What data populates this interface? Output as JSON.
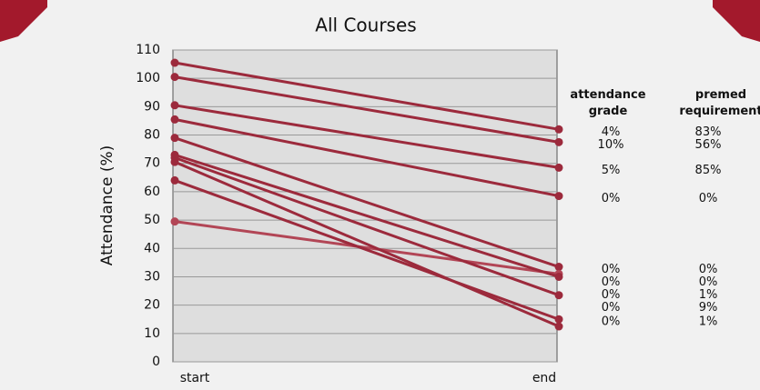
{
  "chart_data": {
    "type": "slope",
    "title": "All Courses",
    "y_label": "Attendance (%)",
    "categories": [
      "start",
      "end"
    ],
    "ylim": [
      0,
      110
    ],
    "yticks": [
      0,
      10,
      20,
      30,
      40,
      50,
      60,
      70,
      80,
      90,
      100,
      110
    ],
    "grid": true,
    "columns": [
      "attendance grade",
      "premed requirement"
    ],
    "series": [
      {
        "color": "#9c2a3c",
        "values": [
          105.5,
          82
        ],
        "labels": [
          "4%",
          "83%"
        ]
      },
      {
        "color": "#9c2a3c",
        "values": [
          100.5,
          77.5
        ],
        "labels": [
          "10%",
          "56%"
        ]
      },
      {
        "color": "#9c2a3c",
        "values": [
          90.5,
          68.5
        ],
        "labels": [
          "5%",
          "85%"
        ]
      },
      {
        "color": "#9c2a3c",
        "values": [
          85.5,
          58.5
        ],
        "labels": [
          "0%",
          "0%"
        ]
      },
      {
        "color": "#9c2a3c",
        "values": [
          79,
          33.5
        ],
        "labels": [
          "0%",
          "0%"
        ]
      },
      {
        "color": "#b24656",
        "values": [
          49.5,
          31
        ],
        "labels": [
          "0%",
          "0%"
        ]
      },
      {
        "color": "#9c2a3c",
        "values": [
          73,
          30
        ],
        "labels": [
          "0%",
          "1%"
        ]
      },
      {
        "color": "#9c2a3c",
        "values": [
          72,
          23.5
        ],
        "labels": [
          "0%",
          "9%"
        ]
      },
      {
        "color": "#9c2a3c",
        "values": [
          64,
          15
        ],
        "labels": [
          "0%",
          "1%"
        ]
      },
      {
        "color": "#9c2a3c",
        "values": [
          70.5,
          12.5
        ],
        "labels": []
      }
    ]
  }
}
